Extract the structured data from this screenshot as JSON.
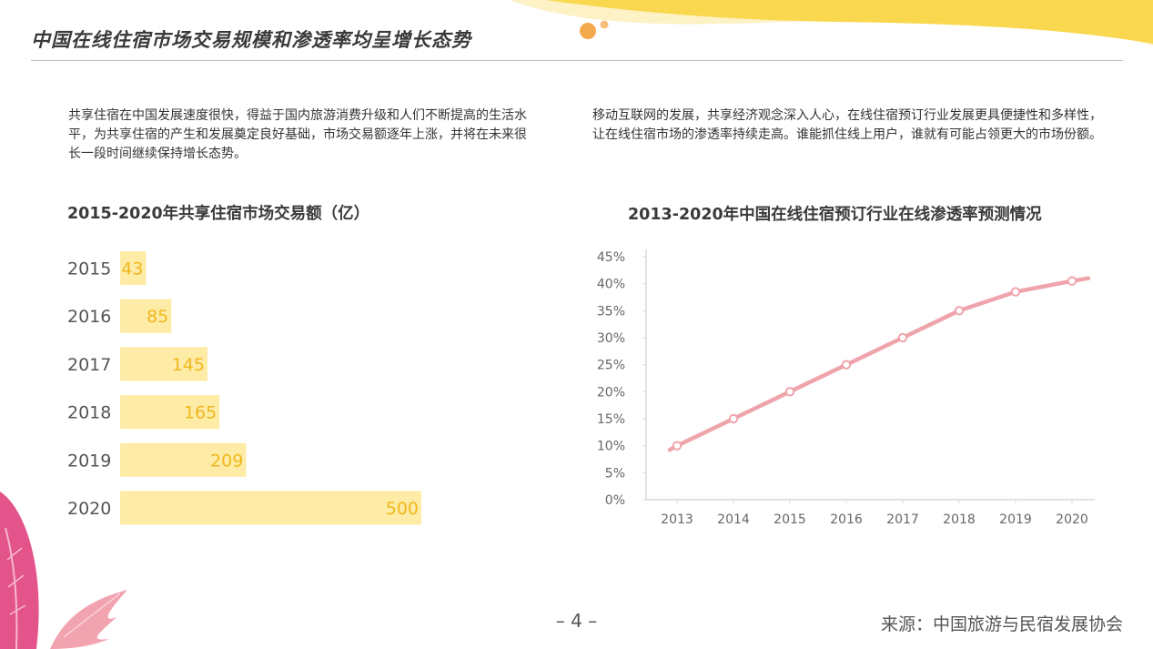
{
  "header": {
    "title": "中国在线住宿市场交易规模和渗透率均呈增长态势"
  },
  "intro": {
    "left": "共享住宿在中国发展速度很快，得益于国内旅游消费升级和人们不断提高的生活水平，为共享住宿的产生和发展奠定良好基础，市场交易额逐年上涨，并将在未来很长一段时间继续保持增长态势。",
    "right": "移动互联网的发展，共享经济观念深入人心，在线住宿预订行业发展更具便捷性和多样性，让在线住宿市场的渗透率持续走高。谁能抓住线上用户，谁就有可能占领更大的市场份额。"
  },
  "chart_data": [
    {
      "type": "bar",
      "orientation": "horizontal",
      "title": "2015-2020年共享住宿市场交易额（亿）",
      "categories": [
        "2015",
        "2016",
        "2017",
        "2018",
        "2019",
        "2020"
      ],
      "values": [
        43,
        85,
        145,
        165,
        209,
        500
      ],
      "data_labels": [
        "43",
        "85",
        "145",
        "165",
        "209",
        "500"
      ],
      "xlabel": "",
      "ylabel": "",
      "xlim": [
        0,
        500
      ],
      "grid": false,
      "colors": {
        "bar": "#FDEBA6",
        "label": "#F0B81E",
        "category": "#555555"
      }
    },
    {
      "type": "line",
      "title": "2013-2020年中国在线住宿预订行业在线渗透率预测情况",
      "x": [
        "2013",
        "2014",
        "2015",
        "2016",
        "2017",
        "2018",
        "2019",
        "2020"
      ],
      "series": [
        {
          "values": [
            10,
            15,
            20,
            25,
            30,
            35,
            38.5,
            40.5
          ]
        }
      ],
      "y_ticks": [
        "0%",
        "5%",
        "10%",
        "15%",
        "20%",
        "25%",
        "30%",
        "35%",
        "40%",
        "45%"
      ],
      "ylim": [
        0,
        45
      ],
      "xlabel": "",
      "ylabel": "",
      "grid": false,
      "colors": {
        "line": "#EFA4AB",
        "marker_fill": "#FFFFFF",
        "axis": "#D9D9D9",
        "tick": "#666666"
      }
    }
  ],
  "footer": {
    "page": "– 4 –",
    "source": "来源：中国旅游与民宿发展协会"
  }
}
